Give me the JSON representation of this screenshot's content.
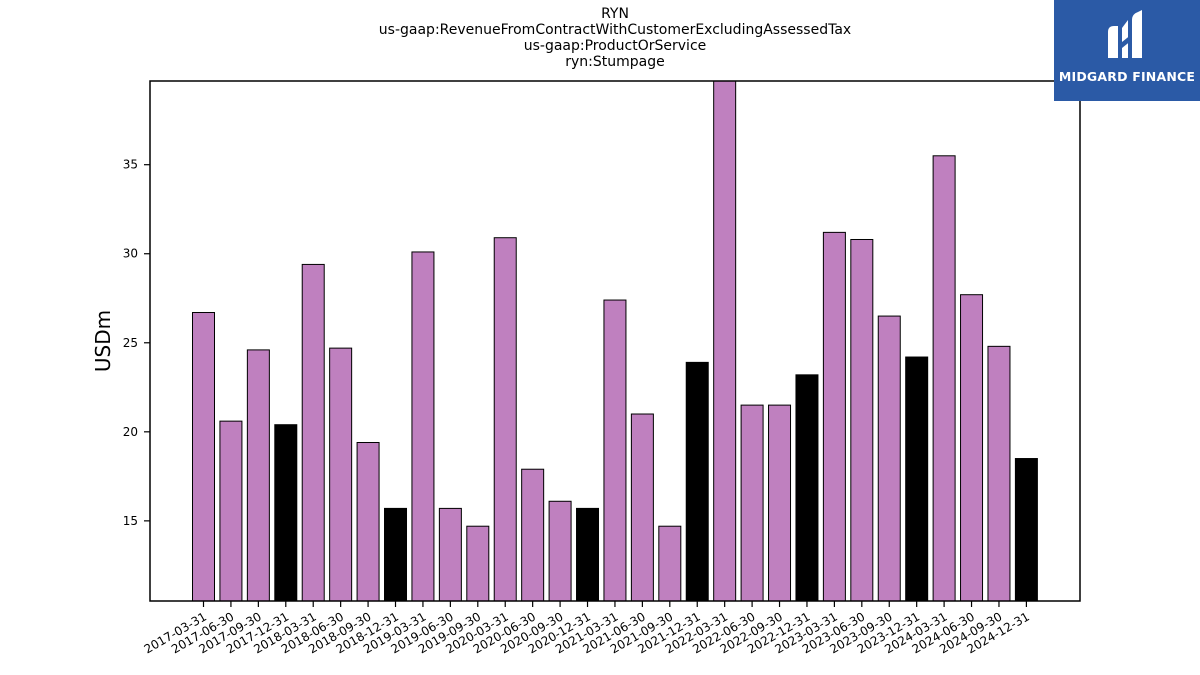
{
  "chart_data": {
    "type": "bar",
    "title_lines": [
      "RYN",
      "us-gaap:RevenueFromContractWithCustomerExcludingAssessedTax",
      "us-gaap:ProductOrService",
      "ryn:Stumpage"
    ],
    "ylabel": "USDm",
    "xlabel": "",
    "ylim": [
      10.5,
      39.7
    ],
    "yticks": [
      15,
      20,
      25,
      30,
      35
    ],
    "grid": false,
    "colors": {
      "quarter": "#bf80bf",
      "year_end": "#000000"
    },
    "categories": [
      "2017-03-31",
      "2017-06-30",
      "2017-09-30",
      "2017-12-31",
      "2018-03-31",
      "2018-06-30",
      "2018-09-30",
      "2018-12-31",
      "2019-03-31",
      "2019-06-30",
      "2019-09-30",
      "2020-03-31",
      "2020-06-30",
      "2020-09-30",
      "2020-12-31",
      "2021-03-31",
      "2021-06-30",
      "2021-09-30",
      "2021-12-31",
      "2022-03-31",
      "2022-06-30",
      "2022-09-30",
      "2022-12-31",
      "2023-03-31",
      "2023-06-30",
      "2023-09-30",
      "2023-12-31",
      "2024-03-31",
      "2024-06-30",
      "2024-09-30",
      "2024-12-31"
    ],
    "values": [
      26.7,
      20.6,
      24.6,
      20.4,
      29.4,
      24.7,
      19.4,
      15.7,
      30.1,
      15.7,
      14.7,
      30.9,
      17.9,
      16.1,
      15.7,
      27.4,
      21.0,
      14.7,
      23.9,
      39.7,
      21.5,
      21.5,
      23.2,
      31.2,
      30.8,
      26.5,
      24.2,
      35.5,
      27.7,
      24.8,
      18.5
    ],
    "year_end": [
      false,
      false,
      false,
      true,
      false,
      false,
      false,
      true,
      false,
      false,
      false,
      false,
      false,
      false,
      true,
      false,
      false,
      false,
      true,
      false,
      false,
      false,
      true,
      false,
      false,
      false,
      true,
      false,
      false,
      false,
      true
    ]
  },
  "logo": {
    "text": "MIDGARD FINANCE"
  }
}
